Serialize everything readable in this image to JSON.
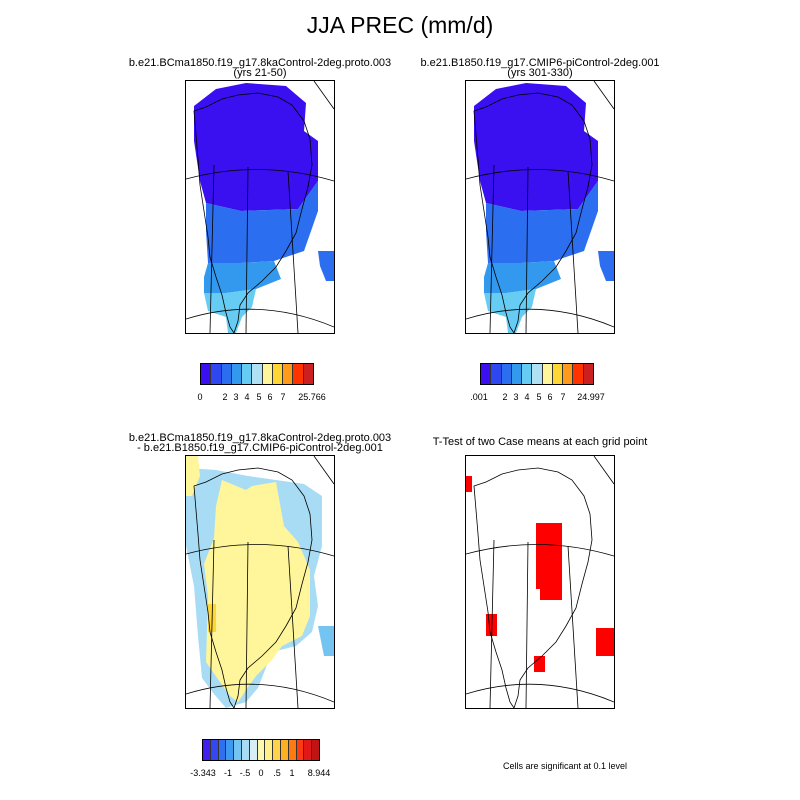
{
  "title": "JJA PREC (mm/d)",
  "colors": {
    "precip_levels": [
      "#3a0ff0",
      "#2f47f0",
      "#2c6ef0",
      "#3399ee",
      "#66ccf4",
      "#b0e0f4",
      "#fff59a",
      "#ffd633",
      "#ff9a1a",
      "#ff3300",
      "#cc1f1f"
    ],
    "diff_levels": [
      "#4020ee",
      "#3548ef",
      "#3070ef",
      "#3d98f0",
      "#74c4f2",
      "#a8dcf4",
      "#d8eef6",
      "#fff8b0",
      "#fff08a",
      "#ffd24a",
      "#ffb020",
      "#ff7a10",
      "#ff3a10",
      "#e01818",
      "#c01414"
    ],
    "significant": "#ff0000",
    "coast": "#000000"
  },
  "chart_data": [
    {
      "type": "heatmap",
      "title": "b.e21.BCma1850.f19_g17.8kaControl-2deg.proto.003",
      "subtitle": "(yrs 21-50)",
      "colorbar": {
        "labels": [
          "0",
          "2",
          "3",
          "4",
          "5",
          "6",
          "7",
          "25.766"
        ]
      },
      "regions": [
        {
          "region": "north",
          "precip_mm_per_day": "0-2"
        },
        {
          "region": "central",
          "precip_mm_per_day": "2-3"
        },
        {
          "region": "south",
          "precip_mm_per_day": "3-5"
        }
      ]
    },
    {
      "type": "heatmap",
      "title": "b.e21.B1850.f19_g17.CMIP6-piControl-2deg.001",
      "subtitle": "(yrs 301-330)",
      "colorbar": {
        "labels": [
          ".001",
          "2",
          "3",
          "4",
          "5",
          "6",
          "7",
          "24.997"
        ]
      },
      "regions": [
        {
          "region": "north",
          "precip_mm_per_day": "0-2"
        },
        {
          "region": "central",
          "precip_mm_per_day": "2-3"
        },
        {
          "region": "south",
          "precip_mm_per_day": "3-5"
        }
      ]
    },
    {
      "type": "heatmap",
      "title": "b.e21.BCma1850.f19_g17.8kaControl-2deg.proto.003",
      "subtitle": "- b.e21.B1850.f19_g17.CMIP6-piControl-2deg.001",
      "colorbar": {
        "labels": [
          "-3.343",
          "-1",
          "-.5",
          "0",
          ".5",
          "1",
          "8.944"
        ]
      },
      "regions": [
        {
          "region": "interior",
          "diff_mm_per_day": "0 to .5"
        },
        {
          "region": "margins",
          "diff_mm_per_day": "-.5 to 0"
        },
        {
          "region": "southeast coast",
          "diff_mm_per_day": "-1 to -.5"
        }
      ]
    },
    {
      "type": "heatmap",
      "title": "T-Test of two Case means at each grid point",
      "note": "Cells are significant at 0.1 level",
      "significant_regions": [
        "central Greenland",
        "west coast",
        "south tip",
        "east coast",
        "northwest corner"
      ]
    }
  ]
}
